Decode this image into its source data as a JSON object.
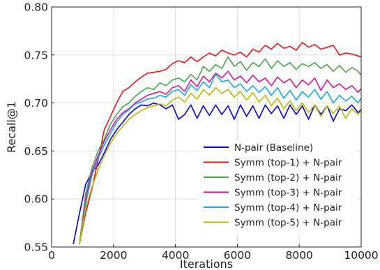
{
  "chart_data": {
    "type": "line",
    "title": "",
    "xlabel": "Iterations",
    "ylabel": "Recall@1",
    "xlim": [
      0,
      10000
    ],
    "ylim": [
      0.55,
      0.8
    ],
    "x_ticks": [
      0,
      2000,
      4000,
      6000,
      8000,
      10000
    ],
    "x_tick_labels": [
      "0",
      "2000",
      "4000",
      "6000",
      "8000",
      "10000"
    ],
    "y_ticks": [
      0.55,
      0.6,
      0.65,
      0.7,
      0.75,
      0.8
    ],
    "y_tick_labels": [
      "0.55",
      "0.60",
      "0.65",
      "0.70",
      "0.75",
      "0.80"
    ],
    "grid": true,
    "legend_position": "lower-right",
    "series": [
      {
        "name": "N-pair (Baseline)",
        "color": "#0000dd",
        "x": [
          700,
          900,
          1100,
          1300,
          1500,
          1700,
          1900,
          2100,
          2300,
          2500,
          2700,
          2900,
          3100,
          3300,
          3500,
          3700,
          3900,
          4100,
          4300,
          4500,
          4700,
          4900,
          5100,
          5300,
          5500,
          5700,
          5900,
          6100,
          6300,
          6500,
          6700,
          6900,
          7100,
          7300,
          7500,
          7700,
          7900,
          8100,
          8300,
          8500,
          8700,
          8900,
          9100,
          9300,
          9500,
          9700,
          9900,
          10000
        ],
        "y": [
          0.553,
          0.585,
          0.615,
          0.628,
          0.635,
          0.648,
          0.662,
          0.672,
          0.68,
          0.688,
          0.694,
          0.698,
          0.697,
          0.7,
          0.698,
          0.694,
          0.698,
          0.683,
          0.688,
          0.698,
          0.684,
          0.697,
          0.687,
          0.698,
          0.688,
          0.697,
          0.683,
          0.698,
          0.686,
          0.697,
          0.684,
          0.698,
          0.689,
          0.697,
          0.684,
          0.698,
          0.688,
          0.697,
          0.683,
          0.698,
          0.688,
          0.697,
          0.681,
          0.694,
          0.692,
          0.698,
          0.69,
          0.693
        ]
      },
      {
        "name": "Symm (top-1) + N-pair",
        "color": "#ee1111",
        "x": [
          900,
          1100,
          1300,
          1500,
          1700,
          1900,
          2100,
          2300,
          2500,
          2700,
          2900,
          3100,
          3300,
          3500,
          3700,
          3900,
          4100,
          4300,
          4500,
          4700,
          4900,
          5100,
          5300,
          5500,
          5700,
          5900,
          6100,
          6300,
          6500,
          6700,
          6900,
          7100,
          7300,
          7500,
          7700,
          7900,
          8100,
          8300,
          8500,
          8700,
          8900,
          9100,
          9300,
          9500,
          9700,
          9900,
          10000
        ],
        "y": [
          0.553,
          0.585,
          0.61,
          0.64,
          0.672,
          0.686,
          0.7,
          0.712,
          0.716,
          0.722,
          0.727,
          0.731,
          0.732,
          0.733,
          0.735,
          0.741,
          0.744,
          0.742,
          0.748,
          0.743,
          0.748,
          0.752,
          0.749,
          0.755,
          0.752,
          0.75,
          0.753,
          0.748,
          0.756,
          0.753,
          0.76,
          0.756,
          0.762,
          0.757,
          0.759,
          0.755,
          0.763,
          0.758,
          0.761,
          0.756,
          0.758,
          0.76,
          0.75,
          0.752,
          0.751,
          0.749,
          0.748
        ]
      },
      {
        "name": "Symm (top-2) + N-pair",
        "color": "#44aa44",
        "x": [
          900,
          1100,
          1300,
          1500,
          1700,
          1900,
          2100,
          2300,
          2500,
          2700,
          2900,
          3100,
          3300,
          3500,
          3700,
          3900,
          4100,
          4300,
          4500,
          4700,
          4900,
          5100,
          5300,
          5500,
          5700,
          5900,
          6100,
          6300,
          6500,
          6700,
          6900,
          7100,
          7300,
          7500,
          7700,
          7900,
          8100,
          8300,
          8500,
          8700,
          8900,
          9100,
          9300,
          9500,
          9700,
          9900,
          10000
        ],
        "y": [
          0.553,
          0.605,
          0.632,
          0.65,
          0.662,
          0.678,
          0.688,
          0.696,
          0.7,
          0.707,
          0.712,
          0.716,
          0.714,
          0.721,
          0.718,
          0.724,
          0.726,
          0.722,
          0.73,
          0.724,
          0.738,
          0.733,
          0.74,
          0.736,
          0.748,
          0.738,
          0.743,
          0.734,
          0.742,
          0.738,
          0.746,
          0.736,
          0.744,
          0.738,
          0.742,
          0.735,
          0.741,
          0.738,
          0.742,
          0.736,
          0.74,
          0.733,
          0.739,
          0.732,
          0.737,
          0.733,
          0.729
        ]
      },
      {
        "name": "Symm (top-3) + N-pair",
        "color": "#dd1199",
        "x": [
          900,
          1100,
          1300,
          1500,
          1700,
          1900,
          2100,
          2300,
          2500,
          2700,
          2900,
          3100,
          3300,
          3500,
          3700,
          3900,
          4100,
          4300,
          4500,
          4700,
          4900,
          5100,
          5300,
          5500,
          5700,
          5900,
          6100,
          6300,
          6500,
          6700,
          6900,
          7100,
          7300,
          7500,
          7700,
          7900,
          8100,
          8300,
          8500,
          8700,
          8900,
          9100,
          9300,
          9500,
          9700,
          9900,
          10000
        ],
        "y": [
          0.553,
          0.6,
          0.628,
          0.645,
          0.66,
          0.672,
          0.683,
          0.69,
          0.694,
          0.7,
          0.704,
          0.708,
          0.71,
          0.712,
          0.709,
          0.716,
          0.718,
          0.712,
          0.724,
          0.717,
          0.728,
          0.722,
          0.731,
          0.726,
          0.733,
          0.724,
          0.728,
          0.721,
          0.729,
          0.722,
          0.726,
          0.718,
          0.727,
          0.721,
          0.725,
          0.716,
          0.724,
          0.719,
          0.726,
          0.713,
          0.724,
          0.716,
          0.72,
          0.714,
          0.718,
          0.711,
          0.715
        ]
      },
      {
        "name": "Symm (top-4) + N-pair",
        "color": "#11aaee",
        "x": [
          900,
          1100,
          1300,
          1500,
          1700,
          1900,
          2100,
          2300,
          2500,
          2700,
          2900,
          3100,
          3300,
          3500,
          3700,
          3900,
          4100,
          4300,
          4500,
          4700,
          4900,
          5100,
          5300,
          5500,
          5700,
          5900,
          6100,
          6300,
          6500,
          6700,
          6900,
          7100,
          7300,
          7500,
          7700,
          7900,
          8100,
          8300,
          8500,
          8700,
          8900,
          9100,
          9300,
          9500,
          9700,
          9900,
          10000
        ],
        "y": [
          0.553,
          0.595,
          0.624,
          0.642,
          0.656,
          0.668,
          0.68,
          0.688,
          0.693,
          0.699,
          0.701,
          0.704,
          0.705,
          0.708,
          0.706,
          0.712,
          0.714,
          0.708,
          0.719,
          0.713,
          0.722,
          0.716,
          0.73,
          0.722,
          0.724,
          0.716,
          0.72,
          0.712,
          0.718,
          0.711,
          0.717,
          0.708,
          0.716,
          0.705,
          0.713,
          0.703,
          0.712,
          0.706,
          0.714,
          0.704,
          0.712,
          0.7,
          0.708,
          0.702,
          0.707,
          0.7,
          0.705
        ]
      },
      {
        "name": "Symm (top-5) + N-pair",
        "color": "#bbbb00",
        "x": [
          900,
          1100,
          1300,
          1500,
          1700,
          1900,
          2100,
          2300,
          2500,
          2700,
          2900,
          3100,
          3300,
          3500,
          3700,
          3900,
          4100,
          4300,
          4500,
          4700,
          4900,
          5100,
          5300,
          5500,
          5700,
          5900,
          6100,
          6300,
          6500,
          6700,
          6900,
          7100,
          7300,
          7500,
          7700,
          7900,
          8100,
          8300,
          8500,
          8700,
          8900,
          9100,
          9300,
          9500,
          9700,
          9900,
          10000
        ],
        "y": [
          0.553,
          0.59,
          0.612,
          0.63,
          0.645,
          0.658,
          0.668,
          0.676,
          0.683,
          0.688,
          0.692,
          0.695,
          0.697,
          0.699,
          0.697,
          0.703,
          0.706,
          0.701,
          0.71,
          0.704,
          0.714,
          0.708,
          0.716,
          0.71,
          0.714,
          0.706,
          0.712,
          0.703,
          0.711,
          0.701,
          0.708,
          0.697,
          0.705,
          0.694,
          0.702,
          0.692,
          0.7,
          0.69,
          0.698,
          0.686,
          0.697,
          0.689,
          0.697,
          0.684,
          0.694,
          0.688,
          0.692
        ]
      }
    ]
  }
}
